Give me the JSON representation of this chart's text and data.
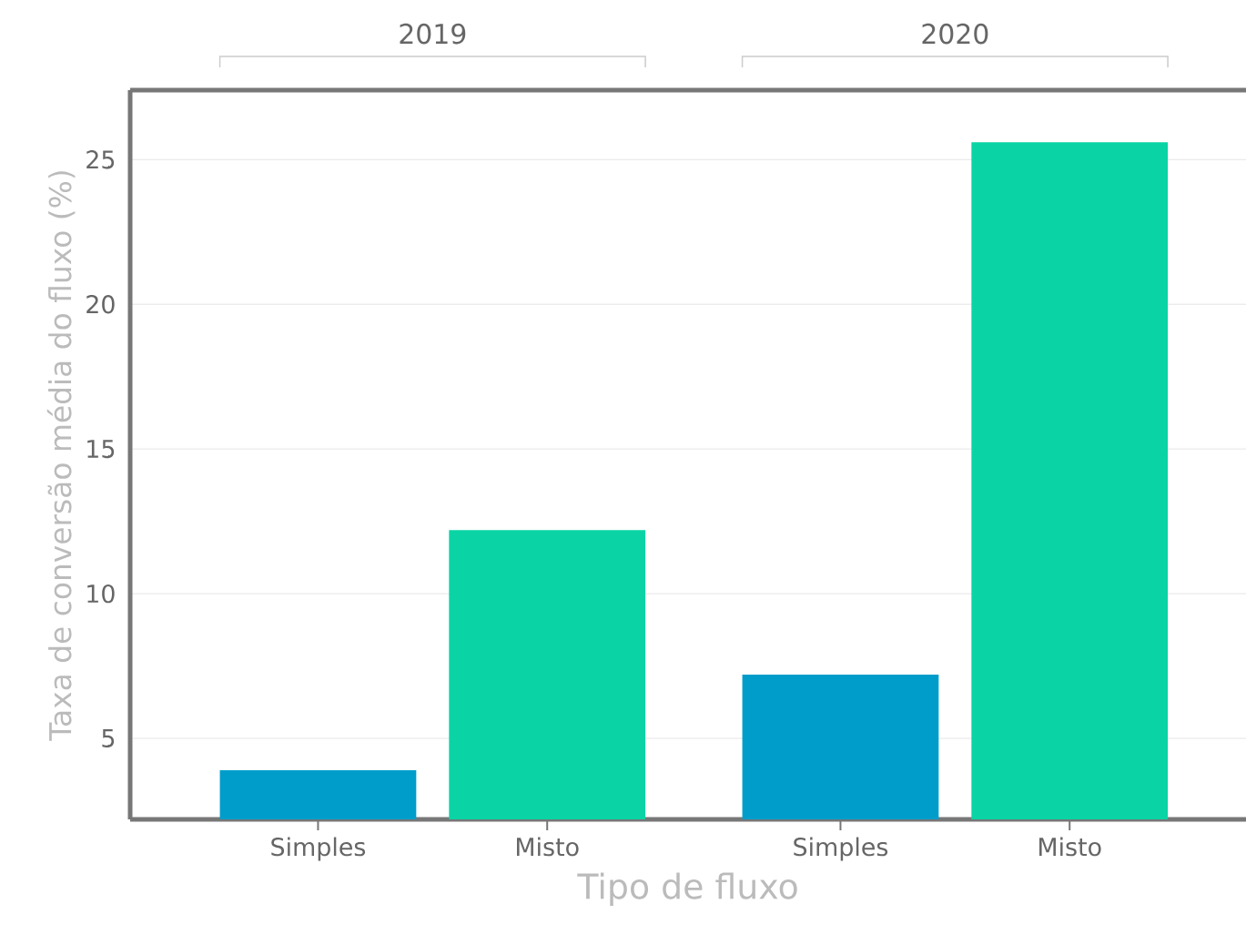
{
  "chart_data": {
    "type": "bar",
    "xlabel": "Tipo de fluxo",
    "ylabel": "Taxa de conversão média do fluxo (%)",
    "categories": [
      "Simples",
      "Misto",
      "Simples",
      "Misto"
    ],
    "values": [
      3.9,
      12.2,
      7.2,
      25.6
    ],
    "colors": [
      "#009dcb",
      "#0ad4a5",
      "#009dcb",
      "#0ad4a5"
    ],
    "ylim": [
      2.2,
      27.4
    ],
    "yticks": [
      5,
      10,
      15,
      20,
      25
    ],
    "grid": "y",
    "annotations": [
      "2019",
      "2020"
    ]
  }
}
